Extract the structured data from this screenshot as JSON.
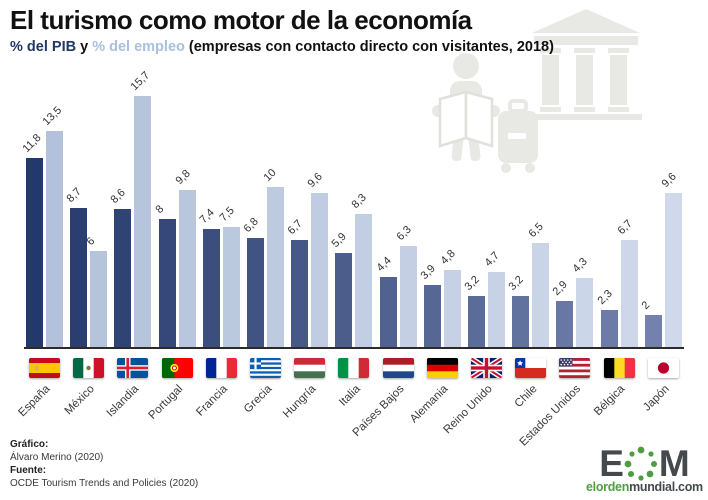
{
  "header": {
    "title": "El turismo como motor de la economía",
    "subtitle_pib": "% del PIB",
    "subtitle_y": " y ",
    "subtitle_empleo": "% del empleo",
    "subtitle_rest": " (empresas con contacto directo con visitantes, 2018)"
  },
  "chart_data": {
    "type": "bar",
    "title": "El turismo como motor de la economía",
    "subtitle": "% del PIB y % del empleo (empresas con contacto directo con visitantes, 2018)",
    "categories": [
      "España",
      "México",
      "Islandia",
      "Portugal",
      "Francia",
      "Grecia",
      "Hungría",
      "Italia",
      "Países Bajos",
      "Alemania",
      "Reino Unido",
      "Chile",
      "Estados Unidos",
      "Bélgica",
      "Japón"
    ],
    "series": [
      {
        "name": "% del PIB",
        "values": [
          11.8,
          8.7,
          8.6,
          8,
          7.4,
          6.8,
          6.7,
          5.9,
          4.4,
          3.9,
          3.2,
          3.2,
          2.9,
          2.3,
          2
        ]
      },
      {
        "name": "% del empleo",
        "values": [
          13.5,
          6,
          15.7,
          9.8,
          7.5,
          10,
          9.6,
          8.3,
          6.3,
          4.8,
          4.7,
          6.5,
          4.3,
          6.7,
          9.6
        ]
      }
    ],
    "value_labels": {
      "pib": [
        "11,8",
        "8,7",
        "8,6",
        "8",
        "7,4",
        "6,8",
        "6,7",
        "5,9",
        "4,4",
        "3,9",
        "3,2",
        "3,2",
        "2,9",
        "2,3",
        "2"
      ],
      "empleo": [
        "13,5",
        "6",
        "15,7",
        "9,8",
        "7,5",
        "10",
        "9,6",
        "8,3",
        "6,3",
        "4,8",
        "4,7",
        "6,5",
        "4,3",
        "6,7",
        "9,6"
      ]
    },
    "flags": [
      "es",
      "mx",
      "is",
      "pt",
      "fr",
      "gr",
      "hu",
      "it",
      "nl",
      "de",
      "gb",
      "cl",
      "us",
      "be",
      "jp"
    ],
    "ylim": [
      0,
      16.5
    ],
    "grid": false,
    "legend_position": "in-subtitle",
    "colors": {
      "pib_start": "#24396B",
      "pib_end": "#7381AC",
      "empleo_start": "#B3C2DA",
      "empleo_end": "#D0D9EB",
      "axis": "#2b2b2b",
      "watermark": "#E8E8E4"
    }
  },
  "footer": {
    "grafico_label": "Gráfico:",
    "grafico_value": "Álvaro Merino (2020)",
    "fuente_label": "Fuente:",
    "fuente_value": "OCDE Tourism Trends and Policies (2020)"
  },
  "logo": {
    "letter_e": "E",
    "letter_m": "M",
    "domain_green": "elorden",
    "domain_dark": "mundial.com",
    "green": "#4E9E41",
    "gray": "#45494C"
  }
}
